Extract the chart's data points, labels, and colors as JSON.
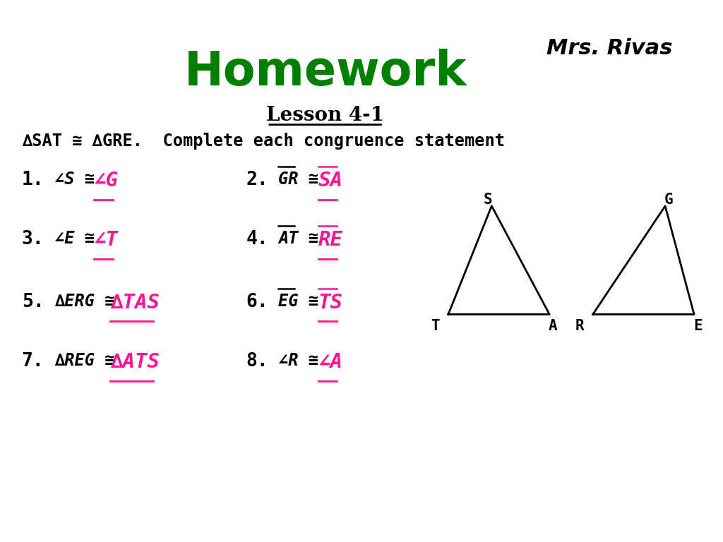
{
  "bg_color": "#ffffff",
  "title": "Homework",
  "title_color": "#008000",
  "subtitle": "Lesson 4-1",
  "mrs_rivas": "Mrs. Rivas",
  "congruence_stmt": "∆SAT ≅ ∆GRE.  Complete each congruence statement",
  "items": [
    {
      "num": "1.",
      "prefix": "∠S ≅ ",
      "answer": "∠G",
      "type": "angle_answer"
    },
    {
      "num": "2.",
      "prefix": "GR ≅ ",
      "answer": "SA",
      "type": "segment_answer",
      "prefix_bar": true,
      "answer_bar": true
    },
    {
      "num": "3.",
      "prefix": "∠E ≅ ",
      "answer": "∠T",
      "type": "angle_answer"
    },
    {
      "num": "4.",
      "prefix": "AT ≅ ",
      "answer": "RE",
      "type": "segment_answer",
      "prefix_bar": true,
      "answer_bar": true
    },
    {
      "num": "5.",
      "prefix": "∆ERG ≅ ",
      "answer": "∆TAS",
      "type": "triangle_answer"
    },
    {
      "num": "6.",
      "prefix": "EG ≅ ",
      "answer": "TS",
      "type": "segment_answer",
      "prefix_bar": true,
      "answer_bar": true
    },
    {
      "num": "7.",
      "prefix": "∆REG ≅ ",
      "answer": "∆ATS",
      "type": "triangle_answer"
    },
    {
      "num": "8.",
      "prefix": "∠R ≅ ",
      "answer": "∠A",
      "type": "angle_answer"
    }
  ],
  "answer_color": "#ff1493",
  "text_color": "#000000",
  "triangle1": {
    "T": [
      0.62,
      0.42
    ],
    "A": [
      0.76,
      0.42
    ],
    "S": [
      0.68,
      0.62
    ]
  },
  "triangle2": {
    "R": [
      0.82,
      0.42
    ],
    "E": [
      0.96,
      0.42
    ],
    "G": [
      0.92,
      0.62
    ]
  }
}
